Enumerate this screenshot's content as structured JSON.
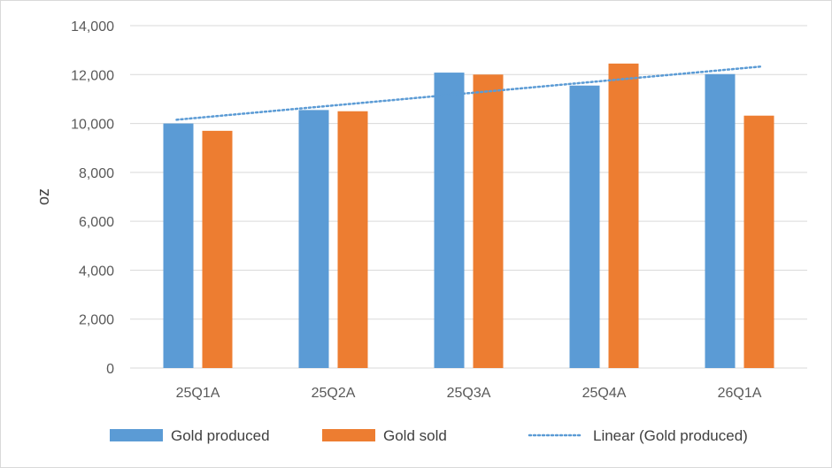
{
  "chart_data": {
    "type": "bar",
    "title": "",
    "xlabel": "",
    "ylabel": "oz",
    "ylim": [
      0,
      14000
    ],
    "yticks": [
      0,
      2000,
      4000,
      6000,
      8000,
      10000,
      12000,
      14000
    ],
    "ytick_labels": [
      "0",
      "2,000",
      "4,000",
      "6,000",
      "8,000",
      "10,000",
      "12,000",
      "14,000"
    ],
    "categories": [
      "25Q1A",
      "25Q2A",
      "25Q3A",
      "25Q4A",
      "26Q1A"
    ],
    "series": [
      {
        "name": "Gold produced",
        "values": [
          10000,
          10550,
          12080,
          11550,
          12020
        ],
        "color": "#5b9bd5"
      },
      {
        "name": "Gold sold",
        "values": [
          9700,
          10500,
          12000,
          12450,
          10320
        ],
        "color": "#ed7d31"
      }
    ],
    "trendline": {
      "name": "Linear (Gold produced)",
      "of_series": "Gold produced",
      "type": "linear",
      "style": "dotted",
      "color": "#5b9bd5"
    },
    "grid": true,
    "legend_position": "bottom"
  }
}
